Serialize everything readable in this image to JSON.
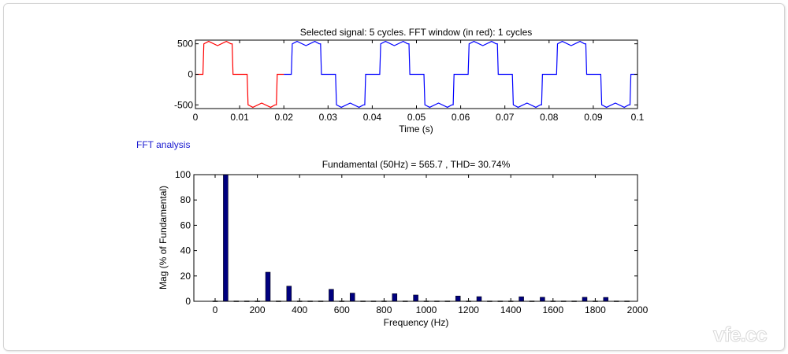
{
  "fft_label": "FFT analysis",
  "watermark": "vfe.cc",
  "chart_data": [
    {
      "type": "line",
      "title": "Selected signal: 5 cycles. FFT window (in red): 1 cycles",
      "xlabel": "Time (s)",
      "ylabel": "",
      "xlim": [
        0,
        0.1
      ],
      "ylim": [
        -560,
        560
      ],
      "xticks": [
        "0",
        "0.01",
        "0.02",
        "0.03",
        "0.04",
        "0.05",
        "0.06",
        "0.07",
        "0.08",
        "0.09",
        "0.1"
      ],
      "yticks": [
        "500",
        "0",
        "-500"
      ],
      "period": 0.02,
      "one_period": {
        "t": [
          0,
          0.0017,
          0.0019,
          0.003,
          0.005,
          0.007,
          0.008,
          0.0083,
          0.0085,
          0.0117,
          0.0119,
          0.013,
          0.015,
          0.017,
          0.018,
          0.0183,
          0.0185,
          0.02
        ],
        "y": [
          0,
          0,
          500,
          540,
          470,
          540,
          500,
          500,
          0,
          0,
          -500,
          -540,
          -470,
          -540,
          -500,
          -500,
          0,
          0
        ]
      },
      "series": [
        {
          "segment": "FFT window",
          "range": [
            0,
            0.02
          ],
          "color": "#ff0000"
        },
        {
          "segment": "rest",
          "range": [
            0.02,
            0.1
          ],
          "color": "#0000ff"
        }
      ],
      "grid": false
    },
    {
      "type": "bar",
      "title": "Fundamental (50Hz) = 565.7 , THD= 30.74%",
      "xlabel": "Frequency (Hz)",
      "ylabel": "Mag (% of Fundamental)",
      "xlim": [
        -100,
        2000
      ],
      "ylim": [
        0,
        100
      ],
      "xticks": [
        "0",
        "200",
        "400",
        "600",
        "800",
        "1000",
        "1200",
        "1400",
        "1600",
        "1800",
        "2000"
      ],
      "yticks": [
        "0",
        "20",
        "40",
        "60",
        "80",
        "100"
      ],
      "x": [
        0,
        50,
        100,
        150,
        200,
        250,
        300,
        350,
        400,
        450,
        500,
        550,
        600,
        650,
        700,
        750,
        800,
        850,
        900,
        950,
        1000,
        1050,
        1100,
        1150,
        1200,
        1250,
        1300,
        1350,
        1400,
        1450,
        1500,
        1550,
        1600,
        1650,
        1700,
        1750,
        1800,
        1850,
        1900,
        1950
      ],
      "values": [
        0.3,
        100,
        0.3,
        0.3,
        0.3,
        23,
        0.3,
        12,
        0.3,
        0.3,
        0.3,
        9.5,
        0.3,
        6.5,
        0.3,
        0.3,
        0.3,
        6,
        0.3,
        5,
        0.3,
        0.3,
        0.3,
        4.2,
        0.3,
        3.7,
        0.3,
        0.3,
        0.3,
        3.6,
        0.3,
        3.2,
        0.3,
        0.3,
        0.3,
        3.2,
        0.3,
        3.1,
        0.3,
        0.3
      ],
      "bar_color": "#00007f",
      "grid": false
    }
  ]
}
